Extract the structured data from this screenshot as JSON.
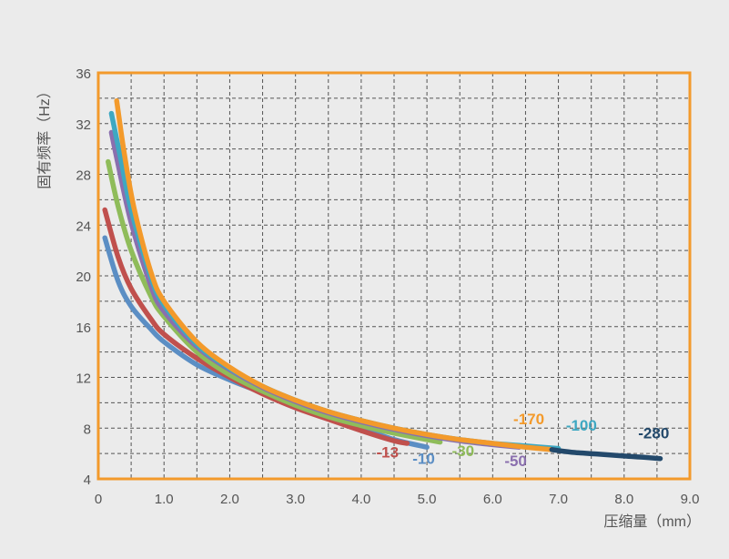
{
  "chart_data": {
    "type": "line",
    "title": "",
    "xlabel": "压缩量（mm）",
    "ylabel": "固有频率（Hz）",
    "xlim": [
      0,
      9
    ],
    "ylim": [
      4,
      36
    ],
    "grid": true,
    "x_ticks": [
      "0",
      "1.0",
      "2.0",
      "3.0",
      "4.0",
      "5.0",
      "6.0",
      "7.0",
      "8.0",
      "9.0"
    ],
    "y_ticks": [
      "4",
      "8",
      "12",
      "16",
      "20",
      "24",
      "28",
      "32",
      "36"
    ],
    "frame_color": "#f39a2b",
    "series": [
      {
        "name": "-10",
        "color": "#5b8ec4",
        "points": [
          [
            0.1,
            23.0
          ],
          [
            0.3,
            19.6
          ],
          [
            0.5,
            17.6
          ],
          [
            0.8,
            15.8
          ],
          [
            1.0,
            14.8
          ],
          [
            1.5,
            13.0
          ],
          [
            2.0,
            11.8
          ],
          [
            2.5,
            10.8
          ],
          [
            3.0,
            9.9
          ],
          [
            3.5,
            8.9
          ],
          [
            4.0,
            8.0
          ],
          [
            4.5,
            7.1
          ],
          [
            5.0,
            6.5
          ]
        ]
      },
      {
        "name": "-13",
        "color": "#c0504d",
        "points": [
          [
            0.1,
            25.2
          ],
          [
            0.3,
            21.5
          ],
          [
            0.5,
            19.0
          ],
          [
            0.8,
            16.6
          ],
          [
            1.0,
            15.4
          ],
          [
            1.5,
            13.5
          ],
          [
            2.0,
            12.0
          ],
          [
            2.5,
            10.7
          ],
          [
            3.0,
            9.6
          ],
          [
            3.5,
            8.7
          ],
          [
            4.0,
            7.8
          ],
          [
            4.5,
            7.0
          ],
          [
            4.7,
            6.8
          ]
        ]
      },
      {
        "name": "-30",
        "color": "#8fbc5a",
        "points": [
          [
            0.15,
            29.0
          ],
          [
            0.3,
            25.5
          ],
          [
            0.5,
            22.0
          ],
          [
            0.8,
            18.4
          ],
          [
            1.0,
            16.8
          ],
          [
            1.5,
            14.0
          ],
          [
            2.0,
            12.2
          ],
          [
            2.5,
            10.9
          ],
          [
            3.0,
            9.8
          ],
          [
            3.5,
            8.9
          ],
          [
            4.0,
            8.2
          ],
          [
            4.5,
            7.6
          ],
          [
            5.2,
            6.9
          ]
        ]
      },
      {
        "name": "-50",
        "color": "#8a6fae",
        "points": [
          [
            0.2,
            31.3
          ],
          [
            0.3,
            28.8
          ],
          [
            0.5,
            24.2
          ],
          [
            0.8,
            19.2
          ],
          [
            1.0,
            17.2
          ],
          [
            1.5,
            14.4
          ],
          [
            2.0,
            12.6
          ],
          [
            2.5,
            11.2
          ],
          [
            3.0,
            10.1
          ],
          [
            3.5,
            9.2
          ],
          [
            4.0,
            8.5
          ],
          [
            4.5,
            7.9
          ],
          [
            5.0,
            7.4
          ],
          [
            5.5,
            7.0
          ],
          [
            6.0,
            6.7
          ],
          [
            6.4,
            6.5
          ]
        ]
      },
      {
        "name": "-100",
        "color": "#3ea8c2",
        "points": [
          [
            0.2,
            32.8
          ],
          [
            0.35,
            29.0
          ],
          [
            0.5,
            25.2
          ],
          [
            0.8,
            19.9
          ],
          [
            1.0,
            17.7
          ],
          [
            1.5,
            14.6
          ],
          [
            2.0,
            12.7
          ],
          [
            2.5,
            11.3
          ],
          [
            3.0,
            10.2
          ],
          [
            3.5,
            9.3
          ],
          [
            4.0,
            8.6
          ],
          [
            4.5,
            8.0
          ],
          [
            5.0,
            7.5
          ],
          [
            5.5,
            7.1
          ],
          [
            6.0,
            6.8
          ],
          [
            6.5,
            6.6
          ],
          [
            7.0,
            6.4
          ]
        ]
      },
      {
        "name": "-170",
        "color": "#f39a2b",
        "points": [
          [
            0.28,
            33.8
          ],
          [
            0.4,
            29.5
          ],
          [
            0.55,
            25.2
          ],
          [
            0.8,
            20.3
          ],
          [
            1.0,
            18.0
          ],
          [
            1.5,
            14.8
          ],
          [
            2.0,
            12.8
          ],
          [
            2.5,
            11.3
          ],
          [
            3.0,
            10.2
          ],
          [
            3.5,
            9.3
          ],
          [
            4.0,
            8.6
          ],
          [
            4.5,
            8.0
          ],
          [
            5.0,
            7.5
          ],
          [
            5.5,
            7.1
          ],
          [
            6.0,
            6.8
          ],
          [
            6.5,
            6.5
          ],
          [
            6.9,
            6.3
          ]
        ]
      },
      {
        "name": "-280",
        "color": "#23496b",
        "points": [
          [
            6.9,
            6.3
          ],
          [
            7.2,
            6.1
          ],
          [
            7.6,
            5.95
          ],
          [
            8.0,
            5.8
          ],
          [
            8.3,
            5.7
          ],
          [
            8.55,
            5.6
          ]
        ]
      }
    ],
    "annotations": [
      {
        "text": "-13",
        "x": 4.4,
        "y": 5.7,
        "color": "#c0504d"
      },
      {
        "text": "-10",
        "x": 4.95,
        "y": 5.2,
        "color": "#5b8ec4"
      },
      {
        "text": "-30",
        "x": 5.55,
        "y": 5.8,
        "color": "#8fbc5a"
      },
      {
        "text": "-50",
        "x": 6.35,
        "y": 5.0,
        "color": "#8a6fae"
      },
      {
        "text": "-170",
        "x": 6.55,
        "y": 8.3,
        "color": "#f39a2b"
      },
      {
        "text": "-100",
        "x": 7.35,
        "y": 7.8,
        "color": "#3ea8c2"
      },
      {
        "text": "-280",
        "x": 8.45,
        "y": 7.2,
        "color": "#23496b"
      }
    ]
  }
}
